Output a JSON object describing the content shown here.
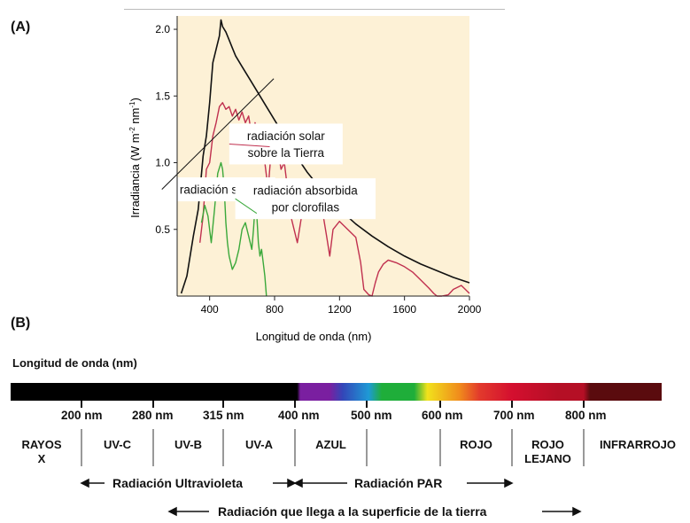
{
  "panel_labels": {
    "a": "(A)",
    "b": "(B)"
  },
  "chart_data": {
    "type": "line",
    "xlabel": "Longitud de onda (nm)",
    "ylabel": "Irradiancia (W m-2 nm-1)",
    "xlim": [
      200,
      2000
    ],
    "ylim": [
      0,
      2.1
    ],
    "x_ticks": [
      "400",
      "800",
      "1200",
      "1600",
      "2000"
    ],
    "y_ticks": [
      "0.5",
      "1.0",
      "1.5",
      "2.0"
    ],
    "background": "#fdf1d6",
    "grid": false,
    "series": [
      {
        "name": "radiación solar",
        "color": "#111111",
        "x": [
          225,
          260,
          300,
          330,
          360,
          380,
          400,
          420,
          440,
          460,
          470,
          480,
          500,
          520,
          540,
          560,
          600,
          650,
          700,
          750,
          800,
          850,
          900,
          950,
          1000,
          1100,
          1200,
          1300,
          1400,
          1500,
          1600,
          1700,
          1800,
          1900,
          2000
        ],
        "y": [
          0.02,
          0.15,
          0.45,
          0.65,
          1.05,
          1.2,
          1.45,
          1.75,
          1.85,
          1.95,
          2.07,
          2.02,
          1.98,
          1.92,
          1.86,
          1.8,
          1.72,
          1.62,
          1.52,
          1.42,
          1.32,
          1.22,
          1.12,
          1.02,
          0.93,
          0.78,
          0.65,
          0.54,
          0.45,
          0.37,
          0.3,
          0.24,
          0.19,
          0.14,
          0.1
        ]
      },
      {
        "name": "radiación solar sobre la Tierra",
        "color": "#c0304f",
        "x": [
          340,
          360,
          380,
          400,
          420,
          440,
          460,
          480,
          500,
          520,
          540,
          560,
          580,
          600,
          620,
          640,
          660,
          680,
          700,
          720,
          740,
          760,
          780,
          800,
          820,
          840,
          860,
          880,
          900,
          920,
          940,
          960,
          980,
          1000,
          1050,
          1100,
          1120,
          1140,
          1160,
          1200,
          1250,
          1300,
          1330,
          1350,
          1380,
          1400,
          1420,
          1440,
          1470,
          1500,
          1550,
          1600,
          1650,
          1700,
          1750,
          1780,
          1800,
          1830,
          1870,
          1900,
          1950,
          2000
        ],
        "y": [
          0.4,
          0.6,
          0.95,
          1.0,
          1.2,
          1.3,
          1.42,
          1.45,
          1.4,
          1.42,
          1.35,
          1.4,
          1.32,
          1.38,
          1.3,
          1.35,
          1.2,
          1.3,
          1.15,
          1.2,
          1.0,
          0.8,
          1.1,
          1.05,
          1.1,
          0.95,
          1.0,
          0.8,
          0.6,
          0.5,
          0.4,
          0.55,
          0.7,
          0.72,
          0.68,
          0.6,
          0.45,
          0.3,
          0.5,
          0.56,
          0.5,
          0.44,
          0.25,
          0.05,
          0.01,
          0.0,
          0.1,
          0.18,
          0.24,
          0.27,
          0.25,
          0.22,
          0.18,
          0.12,
          0.06,
          0.02,
          0.0,
          0.0,
          0.01,
          0.05,
          0.08,
          0.02
        ]
      },
      {
        "name": "radiación absorbida por clorofilas",
        "color": "#3aa83a",
        "x": [
          350,
          370,
          390,
          410,
          430,
          450,
          470,
          480,
          490,
          500,
          510,
          520,
          540,
          560,
          580,
          600,
          620,
          640,
          660,
          670,
          680,
          690,
          700,
          710,
          720,
          730,
          740,
          750
        ],
        "y": [
          0.55,
          0.68,
          0.6,
          0.4,
          0.65,
          0.92,
          1.0,
          0.95,
          0.8,
          0.55,
          0.4,
          0.3,
          0.2,
          0.25,
          0.35,
          0.5,
          0.55,
          0.45,
          0.35,
          0.5,
          0.68,
          0.62,
          0.4,
          0.3,
          0.35,
          0.25,
          0.15,
          0.0
        ]
      }
    ],
    "annotations": [
      {
        "text": "radiación solar",
        "x": 455,
        "y": 0.8,
        "target_x": 795,
        "target_y": 1.63
      },
      {
        "text": "radiación solar\nsobre la Tierra",
        "x": 870,
        "y": 1.14,
        "target_x": 770,
        "target_y": 1.12
      },
      {
        "text": "radiación absorbida\npor clorofilas",
        "x": 990,
        "y": 0.73,
        "target_x": 690,
        "target_y": 0.62
      }
    ]
  },
  "spectrum": {
    "title": "Longitud de onda (nm)",
    "wavelength_labels": [
      "200 nm",
      "280 nm",
      "315 nm",
      "400 nm",
      "500 nm",
      "600 nm",
      "700 nm",
      "800 nm"
    ],
    "regions": [
      "RAYOS\nX",
      "UV-C",
      "UV-B",
      "UV-A",
      "AZUL",
      "",
      "ROJO",
      "ROJO\nLEJANO",
      "INFRARROJO"
    ],
    "arrows": {
      "uv": "Radiación Ultravioleta",
      "par": "Radiación PAR",
      "surface": "Radiación que llega a la superficie de la tierra"
    },
    "bar_colors": [
      "#000000",
      "#7a1fa0",
      "#3346b8",
      "#1e9ad6",
      "#1fae3a",
      "#f1e21c",
      "#f08a1c",
      "#e23a2c",
      "#d40f2f",
      "#b50f25",
      "#5a0b0e"
    ]
  }
}
